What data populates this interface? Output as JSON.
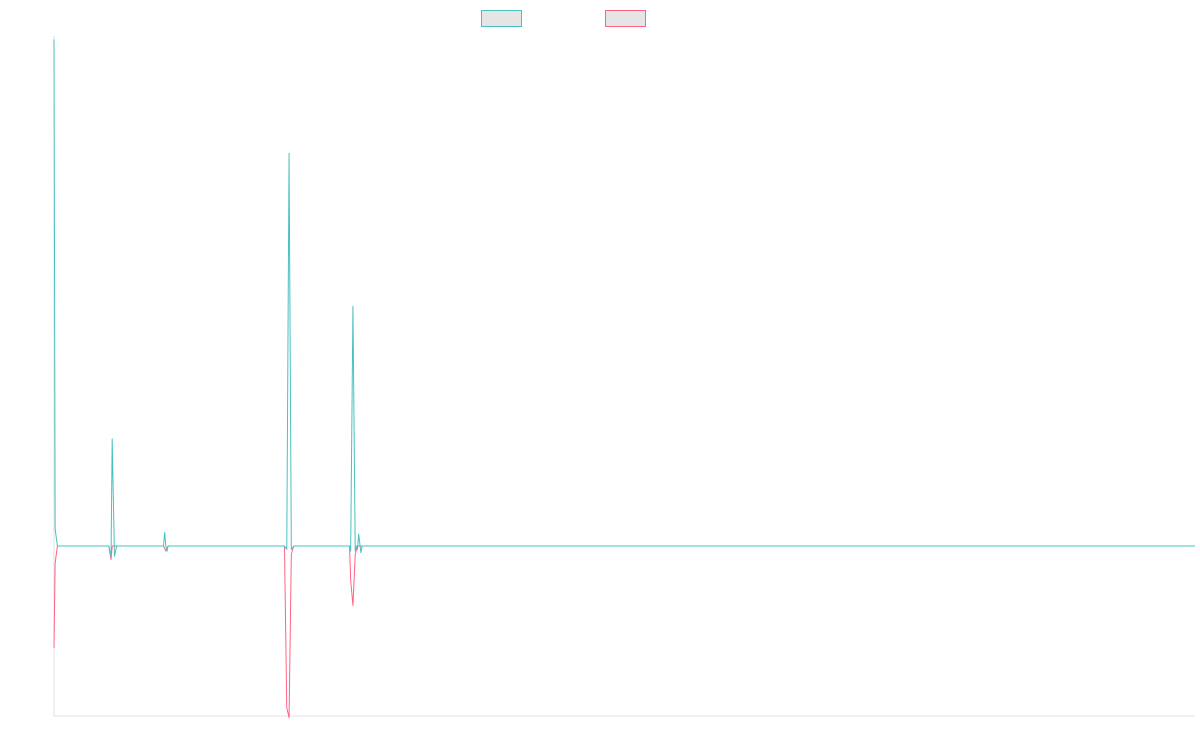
{
  "chart_data": {
    "type": "line",
    "title": "",
    "xlabel": "",
    "ylabel": "",
    "grid": false,
    "legend": {
      "position": "top-center",
      "entries": [
        {
          "name": "",
          "color": "#4bc0c0",
          "fill": "#e5e5e5"
        },
        {
          "name": "",
          "color": "#ff6384",
          "fill": "#e5e5e5"
        }
      ]
    },
    "x": {
      "min": 0,
      "max": 1000
    },
    "ylim": [
      -100,
      300
    ],
    "series": [
      {
        "color": "#4bc0c0",
        "points": [
          [
            0,
            298
          ],
          [
            1,
            10
          ],
          [
            3,
            0
          ],
          [
            48,
            0
          ],
          [
            50,
            -6
          ],
          [
            51,
            63
          ],
          [
            53,
            -6
          ],
          [
            55,
            0
          ],
          [
            60,
            0
          ],
          [
            96,
            0
          ],
          [
            97,
            8
          ],
          [
            98,
            0
          ],
          [
            99,
            -3
          ],
          [
            100,
            0
          ],
          [
            202,
            0
          ],
          [
            204,
            -2
          ],
          [
            206,
            231
          ],
          [
            208,
            -2
          ],
          [
            210,
            0
          ],
          [
            259,
            0
          ],
          [
            260,
            -3
          ],
          [
            262,
            141
          ],
          [
            264,
            -3
          ],
          [
            265,
            0
          ],
          [
            266,
            -2
          ],
          [
            267,
            7
          ],
          [
            269,
            -4
          ],
          [
            270,
            0
          ],
          [
            1000,
            0
          ]
        ]
      },
      {
        "color": "#ff6384",
        "points": [
          [
            0,
            -60
          ],
          [
            1,
            -10
          ],
          [
            3,
            0
          ],
          [
            48,
            0
          ],
          [
            50,
            -8
          ],
          [
            51,
            0
          ],
          [
            53,
            0
          ],
          [
            60,
            0
          ],
          [
            96,
            0
          ],
          [
            98,
            -3
          ],
          [
            100,
            0
          ],
          [
            202,
            0
          ],
          [
            204,
            -95
          ],
          [
            206,
            -101
          ],
          [
            208,
            -5
          ],
          [
            210,
            0
          ],
          [
            259,
            0
          ],
          [
            260,
            -20
          ],
          [
            262,
            -35
          ],
          [
            264,
            -5
          ],
          [
            266,
            0
          ],
          [
            1000,
            0
          ]
        ]
      }
    ]
  }
}
